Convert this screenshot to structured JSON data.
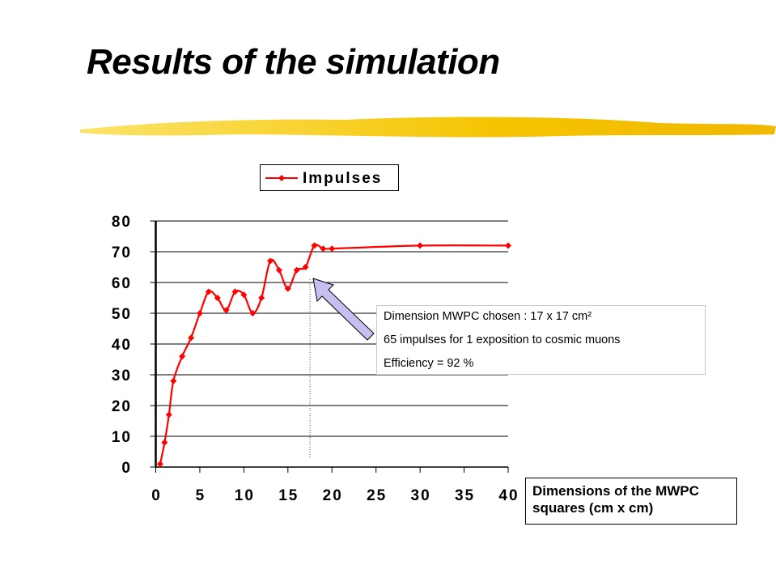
{
  "slide": {
    "title": "Results of the simulation"
  },
  "colors": {
    "series": "#ff0000",
    "brush": "#f5c400",
    "arrow_fill": "#c8bff0"
  },
  "annotation": {
    "line1": "Dimension MWPC chosen : 17 x 17 cm²",
    "line2": "65 impulses  for 1  exposition to cosmic muons",
    "line3": "Efficiency = 92 %"
  },
  "chart_data": {
    "type": "line",
    "title": "",
    "xlabel": "Dimensions of the MWPC squares (cm x cm)",
    "ylabel": "",
    "xlim": [
      0,
      40
    ],
    "ylim": [
      0,
      80
    ],
    "xticks": [
      "0",
      "5",
      "10",
      "15",
      "20",
      "25",
      "30",
      "35",
      "40"
    ],
    "yticks": [
      "0",
      "10",
      "20",
      "30",
      "40",
      "50",
      "60",
      "70",
      "80"
    ],
    "grid": "horizontal",
    "legend": {
      "position": "top",
      "entries": [
        "Impulses"
      ]
    },
    "series": [
      {
        "name": "Impulses",
        "x": [
          0.5,
          1,
          1.5,
          2,
          3,
          4,
          5,
          6,
          7,
          8,
          9,
          10,
          11,
          12,
          13,
          14,
          15,
          16,
          17,
          18,
          19,
          20,
          30,
          40
        ],
        "y": [
          1,
          8,
          17,
          28,
          36,
          42,
          50,
          57,
          55,
          51,
          57,
          56,
          50,
          55,
          67,
          64,
          58,
          64,
          65,
          72,
          71,
          71,
          72,
          72
        ]
      }
    ],
    "marker_x": 17.5
  }
}
